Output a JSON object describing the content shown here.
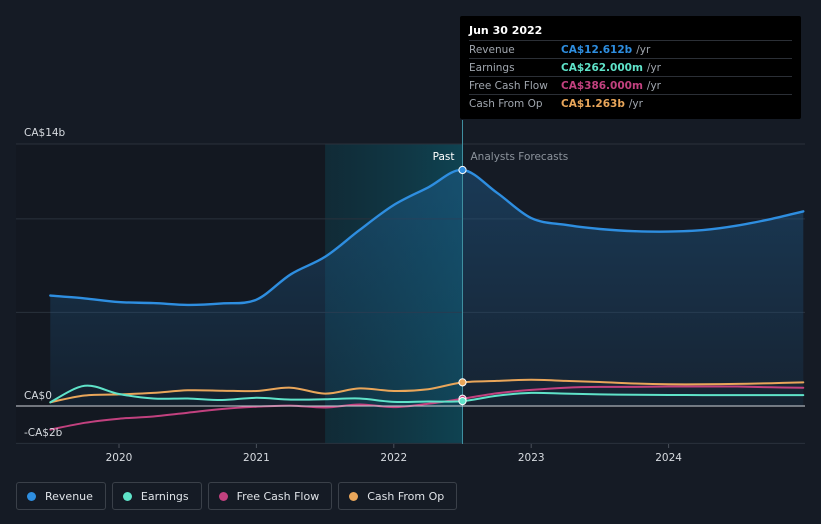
{
  "chart_data": {
    "type": "area",
    "y_unit": "CA$ billions",
    "ylim": [
      -2,
      14
    ],
    "y_ticks": [
      {
        "value": 14,
        "label": "CA$14b"
      },
      {
        "value": 0,
        "label": "CA$0"
      },
      {
        "value": -2,
        "label": "-CA$2b"
      }
    ],
    "x_ticks": [
      {
        "value": 2020,
        "label": "2020"
      },
      {
        "value": 2021,
        "label": "2021"
      },
      {
        "value": 2022,
        "label": "2022"
      },
      {
        "value": 2023,
        "label": "2023"
      },
      {
        "value": 2024,
        "label": "2024"
      }
    ],
    "xlim": [
      2019.3,
      2024.98
    ],
    "past_label": "Past",
    "forecast_label": "Analysts Forecasts",
    "divider_x": 2022.5,
    "highlight_start_x": 2021.5,
    "series": [
      {
        "name": "Revenue",
        "color": "#2e8ee0",
        "fill": true,
        "x": [
          2019.5,
          2019.75,
          2020.0,
          2020.25,
          2020.5,
          2020.75,
          2021.0,
          2021.25,
          2021.5,
          2021.75,
          2022.0,
          2022.25,
          2022.5,
          2022.75,
          2023.0,
          2023.25,
          2023.5,
          2023.75,
          2024.0,
          2024.25,
          2024.5,
          2024.75,
          2024.98
        ],
        "values": [
          5.9,
          5.75,
          5.55,
          5.5,
          5.4,
          5.48,
          5.68,
          7.04,
          7.97,
          9.4,
          10.74,
          11.68,
          12.612,
          11.4,
          10.04,
          9.68,
          9.46,
          9.34,
          9.32,
          9.4,
          9.64,
          10.0,
          10.4
        ]
      },
      {
        "name": "Earnings",
        "color": "#5fe3c9",
        "fill": false,
        "x": [
          2019.5,
          2019.75,
          2020.0,
          2020.25,
          2020.5,
          2020.75,
          2021.0,
          2021.25,
          2021.5,
          2021.75,
          2022.0,
          2022.25,
          2022.5,
          2022.75,
          2023.0,
          2023.25,
          2023.5,
          2023.75,
          2024.0,
          2024.25,
          2024.5,
          2024.75,
          2024.98
        ],
        "values": [
          0.2,
          1.08,
          0.64,
          0.4,
          0.4,
          0.32,
          0.44,
          0.34,
          0.36,
          0.4,
          0.22,
          0.24,
          0.262,
          0.55,
          0.7,
          0.66,
          0.62,
          0.6,
          0.59,
          0.58,
          0.58,
          0.58,
          0.58
        ]
      },
      {
        "name": "Free Cash Flow",
        "color": "#c2417f",
        "fill": false,
        "x": [
          2019.5,
          2019.75,
          2020.0,
          2020.25,
          2020.5,
          2020.75,
          2021.0,
          2021.25,
          2021.5,
          2021.75,
          2022.0,
          2022.25,
          2022.5,
          2022.75,
          2023.0,
          2023.25,
          2023.5,
          2023.75,
          2024.0,
          2024.25,
          2024.5,
          2024.75,
          2024.98
        ],
        "values": [
          -1.26,
          -0.9,
          -0.68,
          -0.56,
          -0.36,
          -0.16,
          -0.04,
          0.02,
          -0.08,
          0.08,
          -0.06,
          0.12,
          0.386,
          0.68,
          0.86,
          0.98,
          1.02,
          1.02,
          1.04,
          1.04,
          1.04,
          1.0,
          0.98
        ]
      },
      {
        "name": "Cash From Op",
        "color": "#e9a65a",
        "fill": false,
        "x": [
          2019.5,
          2019.75,
          2020.0,
          2020.25,
          2020.5,
          2020.75,
          2021.0,
          2021.25,
          2021.5,
          2021.75,
          2022.0,
          2022.25,
          2022.5,
          2022.75,
          2023.0,
          2023.25,
          2023.5,
          2023.75,
          2024.0,
          2024.25,
          2024.5,
          2024.75,
          2024.98
        ],
        "values": [
          0.2,
          0.56,
          0.62,
          0.7,
          0.84,
          0.82,
          0.8,
          0.98,
          0.66,
          0.94,
          0.8,
          0.9,
          1.263,
          1.34,
          1.4,
          1.34,
          1.28,
          1.2,
          1.16,
          1.16,
          1.18,
          1.22,
          1.26
        ]
      }
    ]
  },
  "tooltip": {
    "date": "Jun 30 2022",
    "rows": [
      {
        "label": "Revenue",
        "value": "CA$12.612b",
        "unit": "/yr",
        "color": "#2e8ee0"
      },
      {
        "label": "Earnings",
        "value": "CA$262.000m",
        "unit": "/yr",
        "color": "#5fe3c9"
      },
      {
        "label": "Free Cash Flow",
        "value": "CA$386.000m",
        "unit": "/yr",
        "color": "#c2417f"
      },
      {
        "label": "Cash From Op",
        "value": "CA$1.263b",
        "unit": "/yr",
        "color": "#e9a65a"
      }
    ]
  },
  "legend": [
    {
      "label": "Revenue",
      "color": "#2e8ee0"
    },
    {
      "label": "Earnings",
      "color": "#5fe3c9"
    },
    {
      "label": "Free Cash Flow",
      "color": "#c2417f"
    },
    {
      "label": "Cash From Op",
      "color": "#e9a65a"
    }
  ]
}
